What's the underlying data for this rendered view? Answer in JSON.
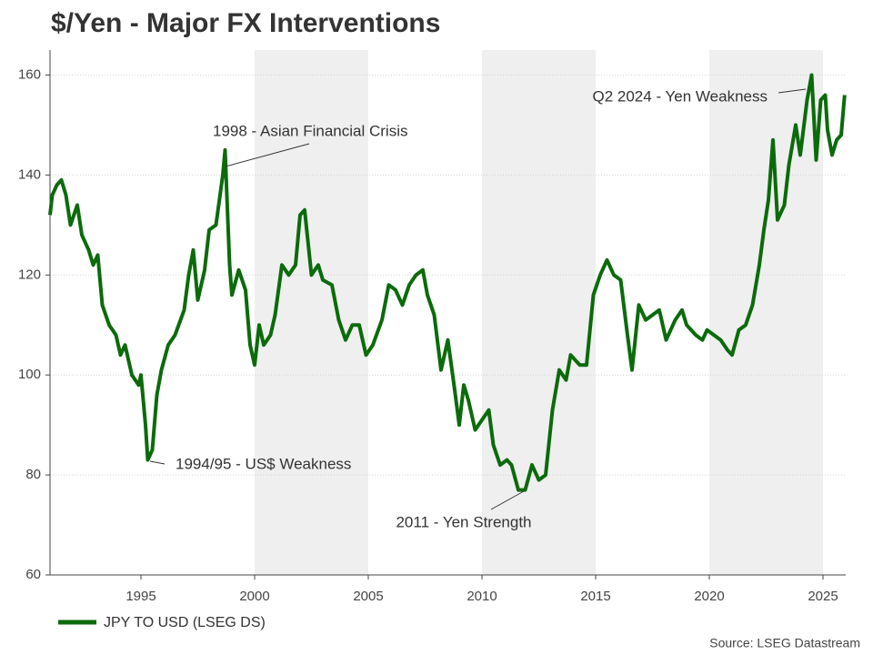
{
  "chart_data": {
    "type": "line",
    "title": "$/Yen - Major FX Interventions",
    "source": "Source: LSEG Datastream",
    "xlim": [
      1991,
      2026
    ],
    "xticks": [
      1995,
      2000,
      2005,
      2010,
      2015,
      2020,
      2025
    ],
    "ylim": [
      60,
      165
    ],
    "yticks": [
      60,
      80,
      100,
      120,
      140,
      160
    ],
    "grid": true,
    "legend": "bottom-left",
    "shaded_periods": [
      [
        2000,
        2005
      ],
      [
        2010,
        2015
      ],
      [
        2020,
        2025
      ]
    ],
    "annotations": [
      "1998 - Asian Financial Crisis",
      "1994/95 - US$ Weakness",
      "2011 - Yen Strength",
      "Q2 2024 - Yen Weakness"
    ],
    "x": [
      1991.0,
      1991.1,
      1991.3,
      1991.5,
      1991.7,
      1991.9,
      1992.2,
      1992.4,
      1992.7,
      1992.9,
      1993.1,
      1993.3,
      1993.6,
      1993.9,
      1994.1,
      1994.3,
      1994.6,
      1994.9,
      1995.0,
      1995.2,
      1995.3,
      1995.5,
      1995.7,
      1995.9,
      1996.2,
      1996.5,
      1996.9,
      1997.1,
      1997.3,
      1997.5,
      1997.8,
      1998.0,
      1998.3,
      1998.6,
      1998.7,
      1998.9,
      1999.0,
      1999.3,
      1999.6,
      1999.8,
      2000.0,
      2000.2,
      2000.4,
      2000.7,
      2000.9,
      2001.2,
      2001.5,
      2001.8,
      2002.0,
      2002.2,
      2002.5,
      2002.8,
      2003.0,
      2003.4,
      2003.7,
      2004.0,
      2004.3,
      2004.6,
      2004.9,
      2005.2,
      2005.6,
      2005.9,
      2006.2,
      2006.5,
      2006.8,
      2007.1,
      2007.4,
      2007.6,
      2007.9,
      2008.2,
      2008.5,
      2008.8,
      2009.0,
      2009.2,
      2009.4,
      2009.7,
      2010.0,
      2010.3,
      2010.5,
      2010.8,
      2011.1,
      2011.3,
      2011.6,
      2011.9,
      2012.2,
      2012.5,
      2012.8,
      2013.1,
      2013.4,
      2013.7,
      2013.9,
      2014.3,
      2014.6,
      2014.9,
      2015.2,
      2015.5,
      2015.8,
      2016.1,
      2016.4,
      2016.6,
      2016.9,
      2017.2,
      2017.5,
      2017.8,
      2018.1,
      2018.5,
      2018.8,
      2019.0,
      2019.4,
      2019.7,
      2019.9,
      2020.2,
      2020.5,
      2020.8,
      2021.0,
      2021.3,
      2021.6,
      2021.9,
      2022.2,
      2022.4,
      2022.6,
      2022.8,
      2023.0,
      2023.3,
      2023.5,
      2023.8,
      2024.0,
      2024.3,
      2024.5,
      2024.7,
      2024.9,
      2025.1,
      2025.2,
      2025.4,
      2025.6,
      2025.8,
      2025.95
    ],
    "series": [
      {
        "name": "JPY TO USD (LSEG DS)",
        "color": "#0b6b0b",
        "values": [
          132,
          136,
          138,
          139,
          136,
          130,
          134,
          128,
          125,
          122,
          124,
          114,
          110,
          108,
          104,
          106,
          100,
          98,
          100,
          90,
          83,
          85,
          96,
          101,
          106,
          108,
          113,
          120,
          125,
          115,
          121,
          129,
          130,
          140,
          145,
          122,
          116,
          121,
          117,
          106,
          102,
          110,
          106,
          108,
          112,
          122,
          120,
          122,
          132,
          133,
          120,
          122,
          119,
          118,
          111,
          107,
          110,
          110,
          104,
          106,
          111,
          118,
          117,
          114,
          118,
          120,
          121,
          116,
          112,
          101,
          107,
          97,
          90,
          98,
          95,
          89,
          91,
          93,
          86,
          82,
          83,
          82,
          77,
          77,
          82,
          79,
          80,
          93,
          101,
          99,
          104,
          102,
          102,
          116,
          120,
          123,
          120,
          119,
          108,
          101,
          114,
          111,
          112,
          113,
          107,
          111,
          113,
          110,
          108,
          107,
          109,
          108,
          107,
          105,
          104,
          109,
          110,
          114,
          122,
          129,
          135,
          147,
          131,
          134,
          142,
          150,
          144,
          155,
          160,
          143,
          155,
          156,
          149,
          144,
          147,
          148,
          156
        ]
      }
    ]
  }
}
